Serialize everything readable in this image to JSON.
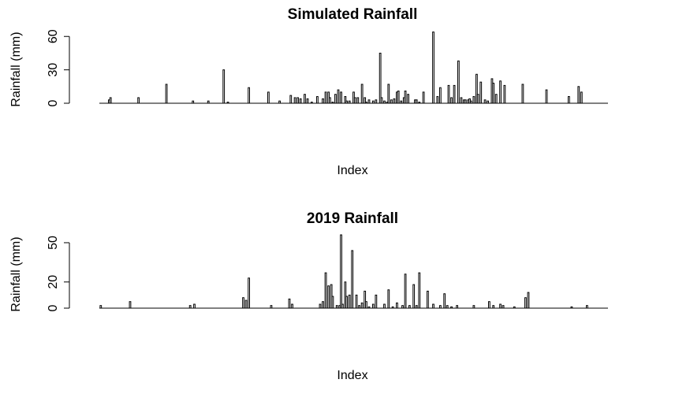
{
  "chart_data": [
    {
      "type": "bar",
      "title": "Simulated Rainfall",
      "xlabel": "Index",
      "ylabel": "Rainfall (mm)",
      "ylim": [
        0,
        63
      ],
      "xlim": [
        1,
        365
      ],
      "yticks": [
        0,
        30,
        60
      ],
      "grid": false,
      "legend": "none",
      "series": [
        {
          "x": [
            8,
            9,
            29,
            49,
            68,
            79,
            90,
            93,
            108,
            122,
            130,
            138,
            141,
            143,
            145,
            148,
            150,
            153,
            157,
            161,
            163,
            165,
            166,
            168,
            170,
            172,
            174,
            177,
            178,
            180,
            183,
            184,
            186,
            189,
            191,
            192,
            194,
            197,
            199,
            202,
            203,
            205,
            207,
            208,
            210,
            212,
            214,
            215,
            217,
            219,
            220,
            222,
            227,
            228,
            230,
            233,
            240,
            243,
            245,
            251,
            253,
            255,
            258,
            260,
            262,
            263,
            265,
            266,
            267,
            269,
            271,
            272,
            274,
            277,
            279,
            282,
            283,
            285,
            288,
            291,
            304,
            321,
            337,
            344,
            346
          ],
          "values": [
            3,
            5,
            5,
            17,
            2,
            2,
            30,
            1,
            14,
            10,
            2,
            7,
            5,
            5,
            4,
            8,
            4,
            1,
            6,
            4,
            10,
            10,
            5,
            1,
            8,
            12,
            10,
            6,
            2,
            2,
            10,
            5,
            5,
            17,
            5,
            1,
            3,
            2,
            3,
            45,
            5,
            2,
            1,
            17,
            3,
            4,
            10,
            11,
            2,
            5,
            11,
            8,
            3,
            3,
            1,
            10,
            64,
            6,
            14,
            16,
            5,
            16,
            38,
            5,
            3,
            3,
            3,
            4,
            2,
            6,
            26,
            8,
            19,
            3,
            2,
            22,
            18,
            8,
            20,
            16,
            17,
            12,
            6,
            15,
            10
          ]
        }
      ]
    },
    {
      "type": "bar",
      "title": "2019 Rainfall",
      "xlabel": "Index",
      "ylabel": "Rainfall (mm)",
      "ylim": [
        0,
        56
      ],
      "xlim": [
        1,
        365
      ],
      "yticks": [
        0,
        20,
        50
      ],
      "grid": false,
      "legend": "none",
      "series": [
        {
          "x": [
            2,
            23,
            66,
            69,
            104,
            106,
            108,
            124,
            137,
            139,
            159,
            161,
            163,
            165,
            167,
            168,
            171,
            173,
            174,
            175,
            177,
            178,
            180,
            182,
            185,
            187,
            189,
            191,
            192,
            194,
            197,
            199,
            205,
            208,
            211,
            214,
            218,
            220,
            223,
            226,
            228,
            230,
            236,
            240,
            245,
            248,
            250,
            253,
            257,
            269,
            280,
            283,
            288,
            290,
            298,
            306,
            308,
            339,
            350
          ],
          "values": [
            2,
            5,
            2,
            3,
            8,
            6,
            23,
            2,
            7,
            3,
            3,
            5,
            27,
            17,
            18,
            9,
            2,
            2,
            56,
            3,
            20,
            9,
            10,
            44,
            10,
            2,
            4,
            13,
            5,
            1,
            3,
            10,
            3,
            14,
            1,
            4,
            2,
            26,
            2,
            18,
            2,
            27,
            13,
            3,
            2,
            11,
            2,
            1,
            2,
            2,
            5,
            2,
            3,
            2,
            1,
            8,
            12,
            1,
            2
          ]
        }
      ]
    }
  ]
}
